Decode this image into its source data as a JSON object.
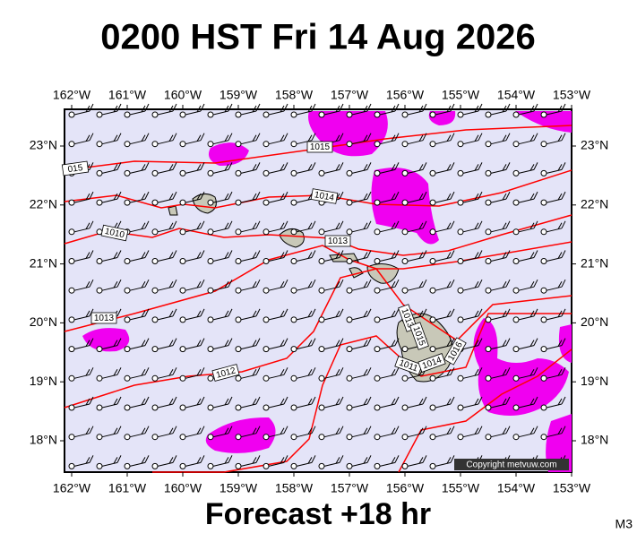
{
  "header": {
    "title": "0200 HST Fri 14 Aug 2026"
  },
  "map": {
    "lon_labels": [
      "162°W",
      "161°W",
      "160°W",
      "159°W",
      "158°W",
      "157°W",
      "156°W",
      "155°W",
      "154°W",
      "153°W"
    ],
    "lat_labels": [
      "23°N",
      "22°N",
      "21°N",
      "20°N",
      "19°N",
      "18°N"
    ],
    "isobar_labels": [
      "1015",
      "015",
      "1014",
      "1010",
      "1013",
      "1013",
      "1012",
      "1013",
      "1015",
      "1011",
      "1014",
      "1016"
    ],
    "copyright": "Copyright metvuw.com"
  },
  "footer": {
    "forecast": "Forecast +18 hr",
    "code": "M3"
  }
}
